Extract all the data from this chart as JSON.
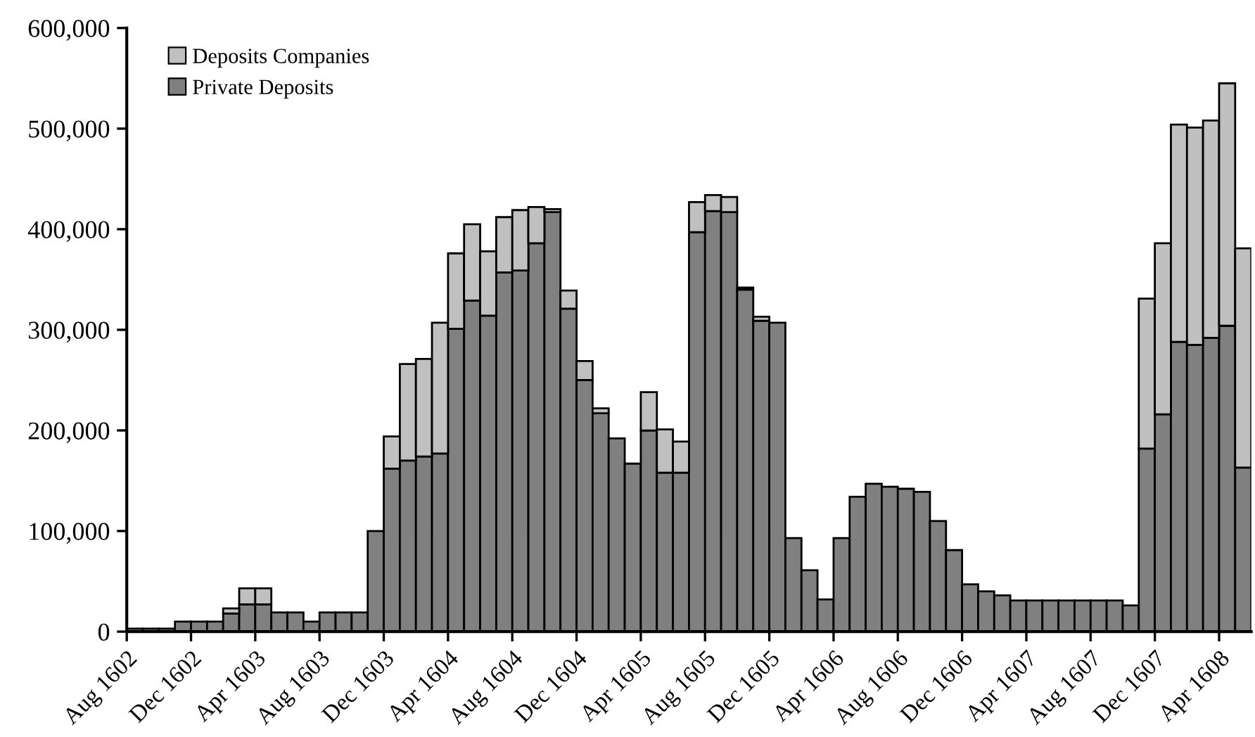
{
  "chart_data": {
    "type": "bar",
    "stacked": true,
    "categories": [
      "Aug 1602",
      null,
      null,
      null,
      "Dec 1602",
      null,
      null,
      null,
      "Apr 1603",
      null,
      null,
      null,
      "Aug 1603",
      null,
      null,
      null,
      "Dec 1603",
      null,
      null,
      null,
      "Apr 1604",
      null,
      null,
      null,
      "Aug 1604",
      null,
      null,
      null,
      "Dec 1604",
      null,
      null,
      null,
      "Apr 1605",
      null,
      null,
      null,
      "Aug 1605",
      null,
      null,
      null,
      "Dec 1605",
      null,
      null,
      null,
      "Apr 1606",
      null,
      null,
      null,
      "Aug 1606",
      null,
      null,
      null,
      "Dec 1606",
      null,
      null,
      null,
      "Apr 1607",
      null,
      null,
      null,
      "Aug 1607",
      null,
      null,
      null,
      "Dec 1607",
      null,
      null,
      null,
      "Apr 1608",
      null
    ],
    "series": [
      {
        "name": "Private Deposits",
        "color": "#808080",
        "values": [
          3000,
          3000,
          3000,
          10000,
          10000,
          10000,
          18000,
          27000,
          27000,
          19000,
          19000,
          10000,
          19000,
          19000,
          19000,
          100000,
          162000,
          170000,
          174000,
          177000,
          301000,
          329000,
          314000,
          357000,
          359000,
          386000,
          417000,
          321000,
          250000,
          217000,
          192000,
          167000,
          200000,
          158000,
          158000,
          397000,
          418000,
          417000,
          340000,
          309000,
          307000,
          93000,
          61000,
          32000,
          93000,
          134000,
          147000,
          144000,
          142000,
          139000,
          110000,
          81000,
          47000,
          40000,
          36000,
          31000,
          31000,
          31000,
          31000,
          31000,
          31000,
          31000,
          26000,
          182000,
          216000,
          288000,
          285000,
          292000,
          304000,
          163000
        ]
      },
      {
        "name": "Deposits Companies",
        "color": "#c0c0c0",
        "values": [
          null,
          null,
          null,
          null,
          null,
          null,
          5000,
          16000,
          16000,
          null,
          null,
          null,
          null,
          null,
          null,
          null,
          32000,
          96000,
          97000,
          130000,
          75000,
          76000,
          64000,
          55000,
          60000,
          36000,
          3000,
          18000,
          19000,
          5000,
          null,
          null,
          38000,
          43000,
          31000,
          30000,
          16000,
          15000,
          2000,
          4000,
          null,
          null,
          null,
          null,
          null,
          null,
          null,
          null,
          null,
          null,
          null,
          null,
          null,
          null,
          null,
          null,
          null,
          null,
          null,
          null,
          null,
          null,
          null,
          149000,
          170000,
          216000,
          216000,
          216000,
          241000,
          218000
        ]
      }
    ],
    "ylim": [
      0,
      600000
    ],
    "yticks": [
      {
        "value": 0,
        "label": "0"
      },
      {
        "value": 100000,
        "label": "100,000"
      },
      {
        "value": 200000,
        "label": "200,000"
      },
      {
        "value": 300000,
        "label": "300,000"
      },
      {
        "value": 400000,
        "label": "400,000"
      },
      {
        "value": 500000,
        "label": "500,000"
      },
      {
        "value": 600000,
        "label": "600,000"
      }
    ],
    "grid": false,
    "legend": "top left"
  }
}
